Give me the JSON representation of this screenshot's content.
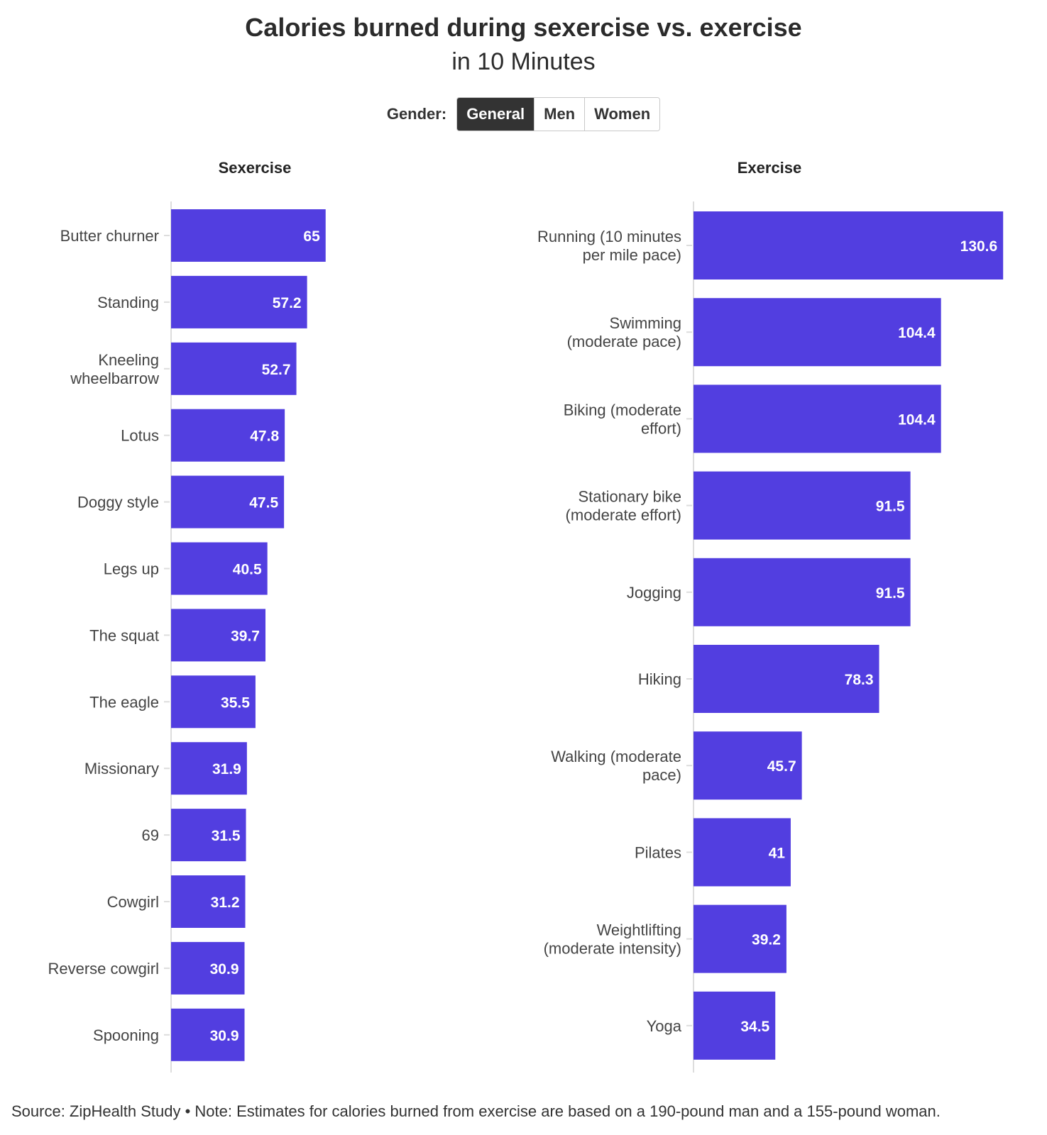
{
  "header": {
    "title": "Calories burned during sexercise vs. exercise",
    "subtitle": "in 10 Minutes"
  },
  "controls": {
    "label": "Gender:",
    "options": [
      "General",
      "Men",
      "Women"
    ],
    "selected": "General"
  },
  "colors": {
    "bar": "#523ee0",
    "bar_label": "#ffffff",
    "axis": "#dddddd",
    "tick_text": "#444444"
  },
  "chart_data": [
    {
      "type": "bar",
      "orientation": "horizontal",
      "title": "Sexercise",
      "categories": [
        "Butter churner",
        "Standing",
        "Kneeling wheelbarrow",
        "Lotus",
        "Doggy style",
        "Legs up",
        "The squat",
        "The eagle",
        "Missionary",
        "69",
        "Cowgirl",
        "Reverse cowgirl",
        "Spooning"
      ],
      "labels": [
        [
          "Butter churner"
        ],
        [
          "Standing"
        ],
        [
          "Kneeling",
          "wheelbarrow"
        ],
        [
          "Lotus"
        ],
        [
          "Doggy style"
        ],
        [
          "Legs up"
        ],
        [
          "The squat"
        ],
        [
          "The eagle"
        ],
        [
          "Missionary"
        ],
        [
          "69"
        ],
        [
          "Cowgirl"
        ],
        [
          "Reverse cowgirl"
        ],
        [
          "Spooning"
        ]
      ],
      "values": [
        65,
        57.2,
        52.7,
        47.8,
        47.5,
        40.5,
        39.7,
        35.5,
        31.9,
        31.5,
        31.2,
        30.9,
        30.9
      ],
      "value_labels": [
        "65",
        "57.2",
        "52.7",
        "47.8",
        "47.5",
        "40.5",
        "39.7",
        "35.5",
        "31.9",
        "31.5",
        "31.2",
        "30.9",
        "30.9"
      ],
      "xlim": [
        0,
        130.6
      ],
      "grid": false
    },
    {
      "type": "bar",
      "orientation": "horizontal",
      "title": "Exercise",
      "categories": [
        "Running (10 minutes per mile pace)",
        "Swimming (moderate pace)",
        "Biking (moderate effort)",
        "Stationary bike (moderate effort)",
        "Jogging",
        "Hiking",
        "Walking (moderate pace)",
        "Pilates",
        "Weightlifting (moderate intensity)",
        "Yoga"
      ],
      "labels": [
        [
          "Running (10 minutes",
          "per mile pace)"
        ],
        [
          "Swimming",
          "(moderate pace)"
        ],
        [
          "Biking (moderate",
          "effort)"
        ],
        [
          "Stationary bike",
          "(moderate effort)"
        ],
        [
          "Jogging"
        ],
        [
          "Hiking"
        ],
        [
          "Walking (moderate",
          "pace)"
        ],
        [
          "Pilates"
        ],
        [
          "Weightlifting",
          "(moderate intensity)"
        ],
        [
          "Yoga"
        ]
      ],
      "values": [
        130.6,
        104.4,
        104.4,
        91.5,
        91.5,
        78.3,
        45.7,
        41,
        39.2,
        34.5
      ],
      "value_labels": [
        "130.6",
        "104.4",
        "104.4",
        "91.5",
        "91.5",
        "78.3",
        "45.7",
        "41",
        "39.2",
        "34.5"
      ],
      "xlim": [
        0,
        130.6
      ],
      "grid": false
    }
  ],
  "footer": {
    "source": "Source: ZipHealth Study • Note: Estimates for calories burned from exercise are based on a 190-pound man and a 155-pound woman."
  }
}
